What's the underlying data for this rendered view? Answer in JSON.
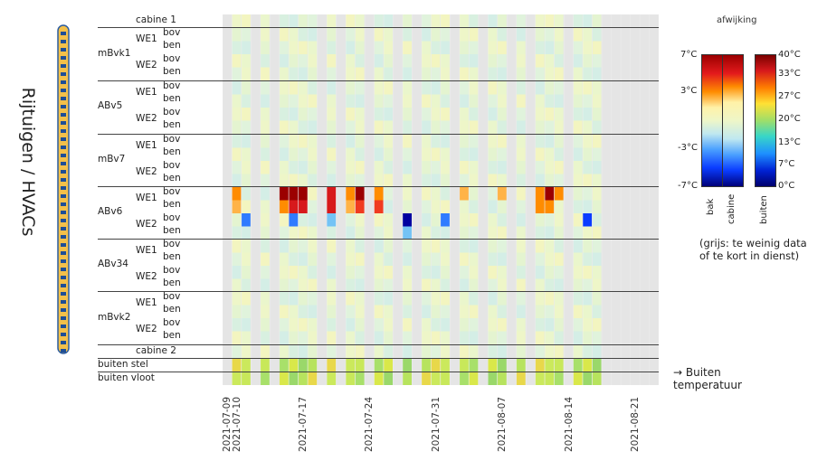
{
  "side_title": "Rijtuigen / HVACs",
  "legend": {
    "title": "afwijking",
    "dev_ticks": [
      "7°C",
      "3°C",
      "-3°C",
      "-7°C"
    ],
    "temp_ticks": [
      "40°C",
      "33°C",
      "27°C",
      "20°C",
      "13°C",
      "7°C",
      "0°C"
    ],
    "bar_labels": [
      "bak",
      "cabine",
      "buiten"
    ],
    "note": "(grijs: te weinig data of te kort in dienst)",
    "outside_note": "→ Buiten temperatuur"
  },
  "colors": {
    "gray": "#e5e5e5",
    "neutral": "#eef6c8"
  },
  "rows": {
    "cabine1": "cabine 1",
    "cabine2": "cabine 2",
    "buiten_stel": "buiten stel",
    "buiten_vloot": "buiten vloot",
    "bov": "bov",
    "ben": "ben",
    "we1": "WE1",
    "we2": "WE2",
    "cars": [
      "mBvk1",
      "ABv5",
      "mBv7",
      "ABv6",
      "ABv34",
      "mBvk2"
    ]
  },
  "chart_data": {
    "type": "heatmap",
    "title": "",
    "x_tick_labels": [
      "2021-07-09",
      "2021-07-10",
      "2021-07-17",
      "2021-07-24",
      "2021-07-31",
      "2021-08-07",
      "2021-08-14",
      "2021-08-21"
    ],
    "x_start": "2021-07-09",
    "x_end": "2021-08-24",
    "active_days": [
      "2021-07-10",
      "2021-07-11",
      "2021-07-13",
      "2021-07-15",
      "2021-07-16",
      "2021-07-17",
      "2021-07-18",
      "2021-07-20",
      "2021-07-22",
      "2021-07-23",
      "2021-07-25",
      "2021-07-26",
      "2021-07-28",
      "2021-07-30",
      "2021-07-31",
      "2021-08-01",
      "2021-08-03",
      "2021-08-04",
      "2021-08-06",
      "2021-08-07",
      "2021-08-09",
      "2021-08-11",
      "2021-08-12",
      "2021-08-13",
      "2021-08-15",
      "2021-08-16",
      "2021-08-17"
    ],
    "highlighted_cells": [
      {
        "row": "ABv6 WE1 bov",
        "day": "2021-07-10",
        "value": 4.5
      },
      {
        "row": "ABv6 WE1 ben",
        "day": "2021-07-10",
        "value": 3.5
      },
      {
        "row": "ABv6 WE1 bov",
        "day": "2021-07-15",
        "value": 6.5
      },
      {
        "row": "ABv6 WE1 ben",
        "day": "2021-07-15",
        "value": 4.5
      },
      {
        "row": "ABv6 WE1 bov",
        "day": "2021-07-16",
        "value": 6.5
      },
      {
        "row": "ABv6 WE1 ben",
        "day": "2021-07-16",
        "value": 6.0
      },
      {
        "row": "ABv6 WE1 bov",
        "day": "2021-07-17",
        "value": 6.5
      },
      {
        "row": "ABv6 WE1 ben",
        "day": "2021-07-17",
        "value": 6.0
      },
      {
        "row": "ABv6 WE1 bov",
        "day": "2021-07-20",
        "value": 6.0
      },
      {
        "row": "ABv6 WE1 ben",
        "day": "2021-07-20",
        "value": 6.0
      },
      {
        "row": "ABv6 WE1 bov",
        "day": "2021-07-22",
        "value": 3.8
      },
      {
        "row": "ABv6 WE1 ben",
        "day": "2021-07-22",
        "value": 3.5
      },
      {
        "row": "ABv6 WE1 bov",
        "day": "2021-07-23",
        "value": 6.5
      },
      {
        "row": "ABv6 WE1 ben",
        "day": "2021-07-23",
        "value": 5.0
      },
      {
        "row": "ABv6 WE1 bov",
        "day": "2021-07-25",
        "value": 4.0
      },
      {
        "row": "ABv6 WE1 ben",
        "day": "2021-07-25",
        "value": 5.5
      },
      {
        "row": "ABv6 WE1 bov",
        "day": "2021-08-03",
        "value": 3.5
      },
      {
        "row": "ABv6 WE1 bov",
        "day": "2021-08-07",
        "value": 3.5
      },
      {
        "row": "ABv6 WE1 bov",
        "day": "2021-08-11",
        "value": 4.5
      },
      {
        "row": "ABv6 WE1 ben",
        "day": "2021-08-11",
        "value": 3.8
      },
      {
        "row": "ABv6 WE1 bov",
        "day": "2021-08-12",
        "value": 6.5
      },
      {
        "row": "ABv6 WE1 ben",
        "day": "2021-08-12",
        "value": 4.5
      },
      {
        "row": "ABv6 WE1 bov",
        "day": "2021-08-13",
        "value": 4.5
      },
      {
        "row": "ABv6 WE2 bov",
        "day": "2021-07-11",
        "value": -5.5
      },
      {
        "row": "ABv6 WE2 bov",
        "day": "2021-07-16",
        "value": -5.5
      },
      {
        "row": "ABv6 WE2 bov",
        "day": "2021-07-20",
        "value": -4.5
      },
      {
        "row": "ABv6 WE2 bov",
        "day": "2021-07-28",
        "value": -7.0
      },
      {
        "row": "ABv6 WE2 ben",
        "day": "2021-07-28",
        "value": -4.5
      },
      {
        "row": "ABv6 WE2 bov",
        "day": "2021-08-01",
        "value": -5.5
      },
      {
        "row": "ABv6 WE2 bov",
        "day": "2021-08-16",
        "value": -6.5
      }
    ],
    "color_scales": [
      {
        "name": "bak",
        "range": [
          -7,
          7
        ]
      },
      {
        "name": "cabine",
        "range": [
          -7,
          7
        ]
      },
      {
        "name": "buiten",
        "range": [
          0,
          40
        ]
      }
    ]
  }
}
